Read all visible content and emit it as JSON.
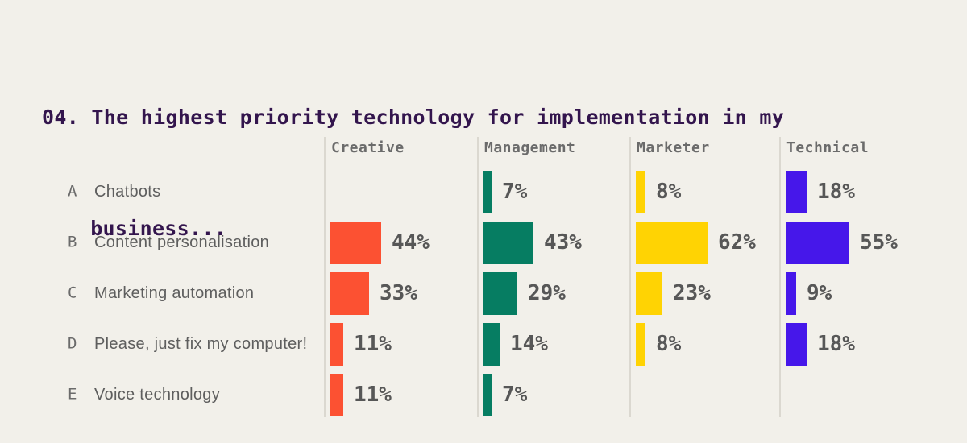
{
  "title": {
    "lines": [
      "04. The highest priority technology for implementation in my",
      "business..."
    ]
  },
  "colors": {
    "background": "#F2F0EA",
    "title_text": "#33154D",
    "axis_line": "#DBD8D0",
    "header_text": "#6B6B6B",
    "row_letter": "#6B6B6B",
    "row_label": "#5E5E5E",
    "value_text": "#575757"
  },
  "chart_data": {
    "type": "bar",
    "orientation": "horizontal",
    "title": "04. The highest priority technology for implementation in my business...",
    "value_suffix": "%",
    "grid": false,
    "legend_position": "column-headers-top",
    "categories": [
      {
        "letter": "A",
        "label": "Chatbots"
      },
      {
        "letter": "B",
        "label": "Content personalisation"
      },
      {
        "letter": "C",
        "label": "Marketing automation"
      },
      {
        "letter": "D",
        "label": "Please, just fix my computer!"
      },
      {
        "letter": "E",
        "label": "Voice technology"
      }
    ],
    "series": [
      {
        "name": "Creative",
        "color": "#FC5132",
        "values": [
          null,
          44,
          33,
          11,
          11
        ]
      },
      {
        "name": "Management",
        "color": "#067D62",
        "values": [
          7,
          43,
          29,
          14,
          7
        ]
      },
      {
        "name": "Marketer",
        "color": "#FFD303",
        "values": [
          8,
          62,
          23,
          8,
          null
        ]
      },
      {
        "name": "Technical",
        "color": "#4617EA",
        "values": [
          18,
          55,
          9,
          18,
          null
        ]
      }
    ]
  }
}
